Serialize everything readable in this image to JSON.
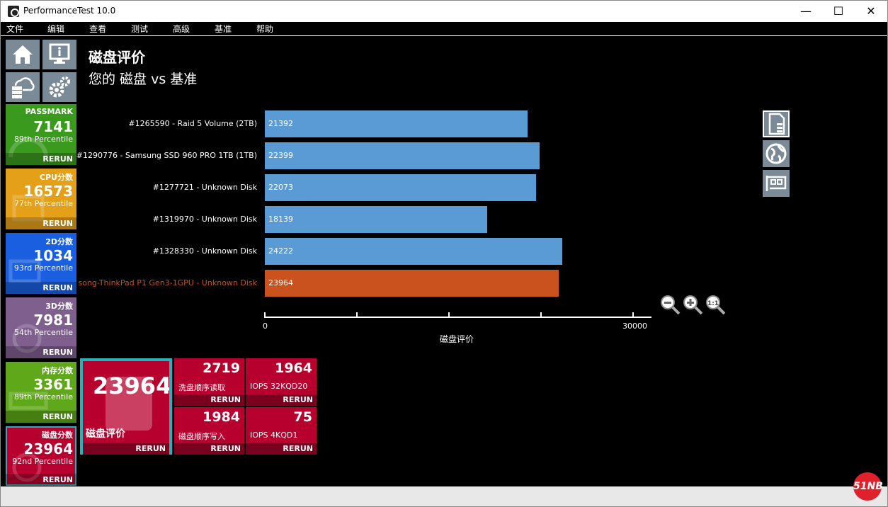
{
  "window": {
    "title": "PerformanceTest 10.0",
    "minimize": "—",
    "maximize": "☐",
    "close": "✕"
  },
  "menu": [
    "文件",
    "编辑",
    "查看",
    "测试",
    "高级",
    "基准",
    "帮助"
  ],
  "nav_icons": [
    "home-icon",
    "info-monitor-icon",
    "cloud-server-icon",
    "gear-icon"
  ],
  "tiles": [
    {
      "name": "PASSMARK",
      "score": "7141",
      "percentile": "89th Percentile",
      "rerun": "RERUN",
      "color": "#3a9a1e"
    },
    {
      "name": "CPU分数",
      "score": "16573",
      "percentile": "77th Percentile",
      "rerun": "RERUN",
      "color": "#e5a01a"
    },
    {
      "name": "2D分数",
      "score": "1034",
      "percentile": "93rd Percentile",
      "rerun": "RERUN",
      "color": "#1a5fe0"
    },
    {
      "name": "3D分数",
      "score": "7981",
      "percentile": "54th Percentile",
      "rerun": "RERUN",
      "color": "#7e5f8e"
    },
    {
      "name": "内存分数",
      "score": "3361",
      "percentile": "89th Percentile",
      "rerun": "RERUN",
      "color": "#5fa81a"
    },
    {
      "name": "磁盘分数",
      "score": "23964",
      "percentile": "92nd Percentile",
      "rerun": "RERUN",
      "color": "#b8002f"
    }
  ],
  "heading": {
    "title": "磁盘评价",
    "subtitle": "您的 磁盘 vs 基准"
  },
  "chart_data": {
    "type": "bar",
    "orientation": "horizontal",
    "categories": [
      "#1265590 - Raid 5 Volume (2TB)",
      "#1290776 - Samsung SSD 960 PRO 1TB (1TB)",
      "#1277721 - Unknown Disk",
      "#1319970 - Unknown Disk",
      "#1328330 - Unknown Disk",
      "song-ThinkPad P1 Gen3-1GPU - Unknown Disk"
    ],
    "values": [
      21392,
      22399,
      22073,
      18139,
      24222,
      23964
    ],
    "colors": [
      "#5b9bd5",
      "#5b9bd5",
      "#5b9bd5",
      "#5b9bd5",
      "#5b9bd5",
      "#c9521f"
    ],
    "highlight_label_color": "#c9521f",
    "xlabel": "磁盘评价",
    "xlim": [
      0,
      31500
    ],
    "xticks": [
      0,
      30000
    ],
    "grid": false
  },
  "side_icons": [
    "document-icon",
    "globe-icon",
    "disk-card-icon"
  ],
  "zoom_icons": [
    "zoom-out-icon",
    "zoom-in-icon",
    "zoom-reset-icon"
  ],
  "disk_main": {
    "score": "23964",
    "label": "磁盘评价",
    "rerun": "RERUN"
  },
  "disk_sub": [
    {
      "score": "2719",
      "label": "洗盘顺序读取",
      "rerun": "RERUN"
    },
    {
      "score": "1964",
      "label": "IOPS 32KQD20",
      "rerun": "RERUN"
    },
    {
      "score": "1984",
      "label": "磁盘顺序写入",
      "rerun": "RERUN"
    },
    {
      "score": "75",
      "label": "IOPS 4KQD1",
      "rerun": "RERUN"
    }
  ],
  "watermark": "51NB"
}
